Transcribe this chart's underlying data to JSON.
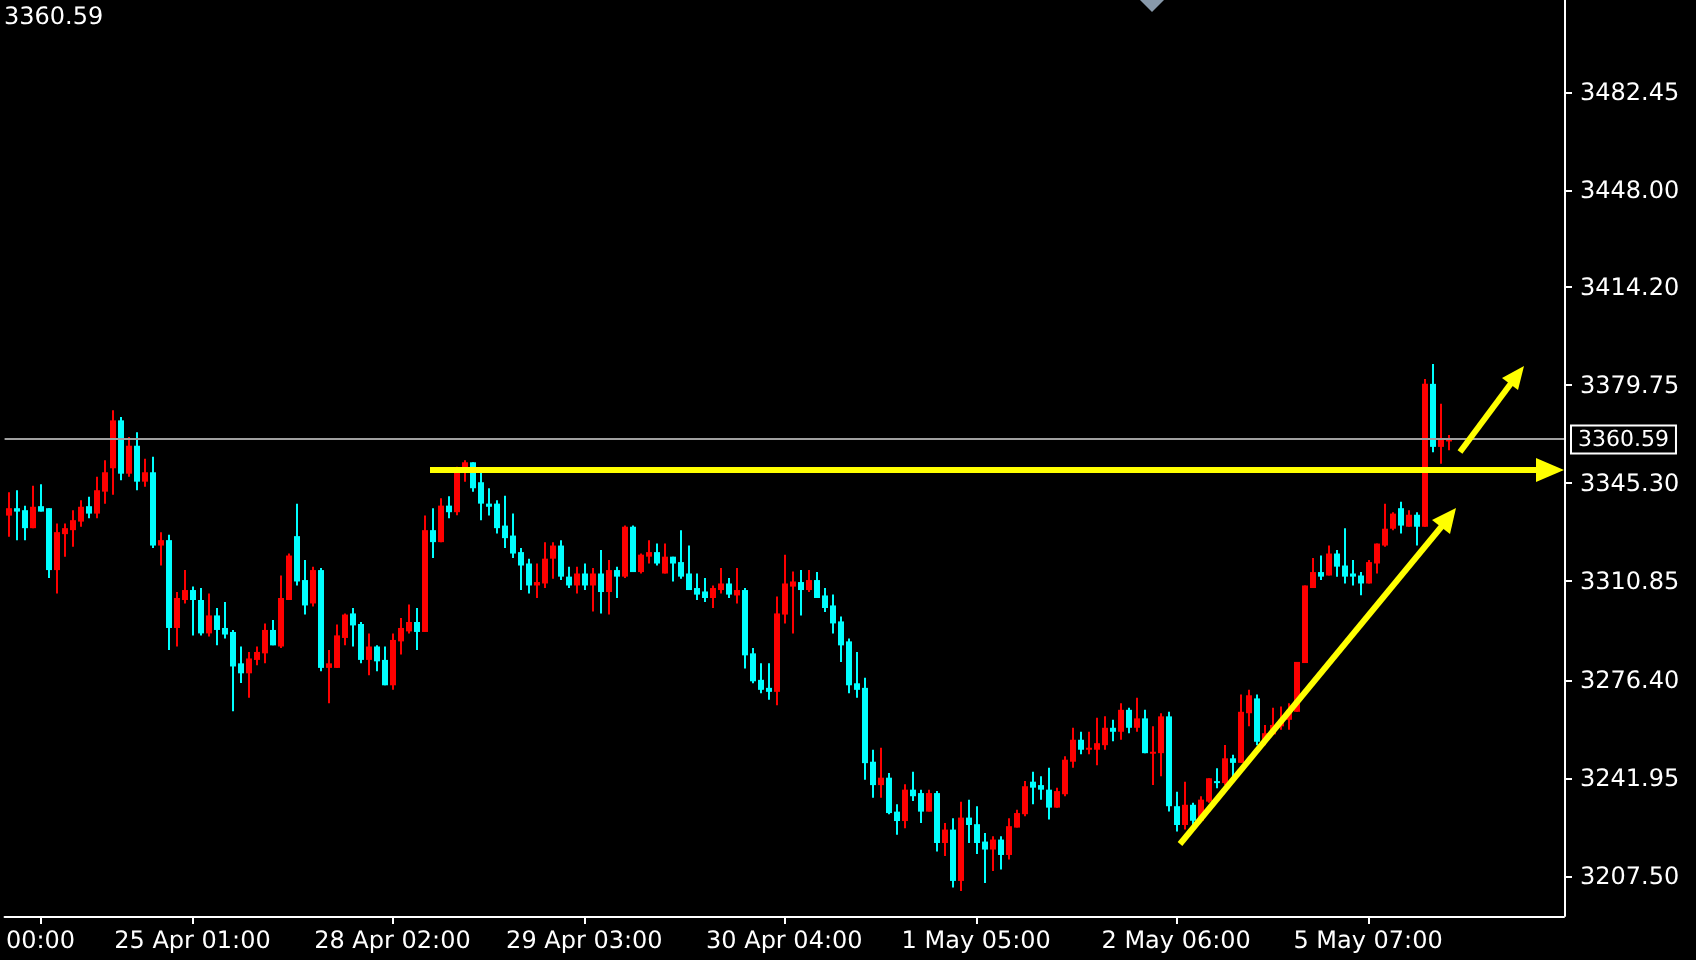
{
  "chart_data": {
    "type": "candlestick",
    "annotations": [
      "3360.59"
    ],
    "categories": [
      null,
      null,
      null,
      null,
      "00:00",
      null,
      null,
      null,
      null,
      null,
      null,
      null,
      null,
      null,
      null,
      null,
      null,
      null,
      null,
      null,
      null,
      null,
      null,
      "25 Apr 01:00",
      null,
      null,
      null,
      null,
      null,
      null,
      null,
      null,
      null,
      null,
      null,
      null,
      null,
      null,
      null,
      null,
      null,
      null,
      null,
      null,
      null,
      null,
      null,
      null,
      "28 Apr 02:00",
      null,
      null,
      null,
      null,
      null,
      null,
      null,
      null,
      null,
      null,
      null,
      null,
      null,
      null,
      null,
      null,
      null,
      null,
      null,
      null,
      null,
      null,
      null,
      "29 Apr 03:00",
      null,
      null,
      null,
      null,
      null,
      null,
      null,
      null,
      null,
      null,
      null,
      null,
      null,
      null,
      null,
      null,
      null,
      null,
      null,
      null,
      null,
      null,
      null,
      null,
      "30 Apr 04:00",
      null,
      null,
      null,
      null,
      null,
      null,
      null,
      null,
      null,
      null,
      null,
      null,
      null,
      null,
      null,
      null,
      null,
      null,
      null,
      null,
      null,
      null,
      null,
      "1 May 05:00",
      null,
      null,
      null,
      null,
      null,
      null,
      null,
      null,
      null,
      null,
      null,
      null,
      null,
      null,
      null,
      null,
      null,
      null,
      null,
      null,
      null,
      null,
      null,
      null,
      "2 May 06:00",
      null,
      null,
      null,
      null,
      null,
      null,
      null,
      null,
      null,
      null,
      null,
      null,
      null,
      null,
      null,
      null,
      null,
      null,
      null,
      null,
      null,
      null,
      null,
      "5 May 07:00",
      null,
      null,
      null,
      null,
      null,
      null,
      null,
      null,
      null,
      null,
      null,
      null,
      null,
      null,
      null,
      null,
      null,
      null,
      null,
      null,
      null,
      null,
      null,
      null
    ],
    "ohlc": [
      [
        3333.9,
        3342.1,
        3326.5,
        3336.5
      ],
      [
        3336.5,
        3342.8,
        3325.3,
        3335.3
      ],
      [
        3335.8,
        3337.4,
        3325.3,
        3329.5
      ],
      [
        3329.5,
        3344.4,
        3329.5,
        3337
      ],
      [
        3337.2,
        3344.9,
        3335.3,
        3335.3
      ],
      [
        3336.5,
        3336.5,
        3312,
        3314.8
      ],
      [
        3314.8,
        3331.1,
        3306.6,
        3328.1
      ],
      [
        3327.4,
        3331.1,
        3319.5,
        3329.5
      ],
      [
        3328.8,
        3335.8,
        3323,
        3332.3
      ],
      [
        3331.8,
        3339.3,
        3330,
        3337
      ],
      [
        3337.2,
        3340.5,
        3333,
        3334.6
      ],
      [
        3334.6,
        3347.5,
        3333,
        3342.8
      ],
      [
        3342.3,
        3353.3,
        3338.1,
        3349.1
      ],
      [
        3350.5,
        3370.8,
        3341.2,
        3367.3
      ],
      [
        3367.3,
        3368.5,
        3346.3,
        3348.6
      ],
      [
        3348.6,
        3361.5,
        3347.5,
        3358.4
      ],
      [
        3358.4,
        3363.1,
        3342.8,
        3345.8
      ],
      [
        3345.8,
        3353.8,
        3344,
        3349.1
      ],
      [
        3349.1,
        3354.5,
        3322.5,
        3323.4
      ],
      [
        3323.4,
        3328.1,
        3316.4,
        3325.3
      ],
      [
        3325.3,
        3327.2,
        3286.8,
        3294.5
      ],
      [
        3294.5,
        3307.1,
        3288,
        3305
      ],
      [
        3304.3,
        3314.8,
        3303.1,
        3307.8
      ],
      [
        3307.8,
        3309,
        3291.9,
        3304.3
      ],
      [
        3304.3,
        3308.5,
        3291.9,
        3292.6
      ],
      [
        3292.6,
        3306.6,
        3291.5,
        3298.9
      ],
      [
        3298.9,
        3301.5,
        3288.4,
        3293.8
      ],
      [
        3294.5,
        3303.6,
        3290.8,
        3292.2
      ],
      [
        3293.1,
        3293.8,
        3265.3,
        3281
      ],
      [
        3282.1,
        3288,
        3275.2,
        3278.6
      ],
      [
        3278.6,
        3286.1,
        3270,
        3283.8
      ],
      [
        3283.3,
        3288,
        3281.4,
        3286.1
      ],
      [
        3285.6,
        3296.1,
        3282.1,
        3293.8
      ],
      [
        3293.8,
        3297.3,
        3288.4,
        3288.4
      ],
      [
        3288,
        3312.9,
        3287.5,
        3305
      ],
      [
        3304.3,
        3320.6,
        3304.3,
        3319.9
      ],
      [
        3326.7,
        3338.1,
        3309.4,
        3310.8
      ],
      [
        3311.3,
        3318.3,
        3299.2,
        3302.4
      ],
      [
        3303.1,
        3316,
        3302,
        3314.8
      ],
      [
        3314.8,
        3315.5,
        3279.3,
        3280.5
      ],
      [
        3280.5,
        3286.8,
        3268.1,
        3282.1
      ],
      [
        3280.5,
        3295.7,
        3280.5,
        3291.9
      ],
      [
        3291,
        3299.6,
        3288.4,
        3299.2
      ],
      [
        3299.6,
        3301.5,
        3288,
        3295.4
      ],
      [
        3295.9,
        3296.6,
        3282.1,
        3283.3
      ],
      [
        3283.3,
        3292.6,
        3277.9,
        3288
      ],
      [
        3288,
        3288.4,
        3279.3,
        3282.8
      ],
      [
        3283.3,
        3288,
        3274.4,
        3274.4
      ],
      [
        3274.4,
        3292.6,
        3272.8,
        3290.3
      ],
      [
        3289.8,
        3298,
        3285.2,
        3294.5
      ],
      [
        3293.3,
        3302.7,
        3292.6,
        3296.6
      ],
      [
        3296.6,
        3301.5,
        3286.8,
        3293.1
      ],
      [
        3293.1,
        3333.9,
        3293.1,
        3328.8
      ],
      [
        3328.8,
        3336.5,
        3319,
        3324.6
      ],
      [
        3324.6,
        3340,
        3324.6,
        3337.4
      ],
      [
        3337.4,
        3340.7,
        3333,
        3335.1
      ],
      [
        3335.1,
        3351,
        3334,
        3349.8
      ],
      [
        3349.8,
        3353.3,
        3345.8,
        3352.6
      ],
      [
        3352.6,
        3352.6,
        3342.3,
        3343.5
      ],
      [
        3345.6,
        3349.1,
        3332.3,
        3338.1
      ],
      [
        3338.1,
        3343.5,
        3333.9,
        3337
      ],
      [
        3338.1,
        3339.3,
        3327.6,
        3329.5
      ],
      [
        3330.4,
        3340.9,
        3322.5,
        3326
      ],
      [
        3326.9,
        3334.6,
        3319,
        3320.6
      ],
      [
        3321.1,
        3322.5,
        3307.8,
        3316.4
      ],
      [
        3317.1,
        3318.8,
        3306.6,
        3309.4
      ],
      [
        3309.4,
        3317.1,
        3305,
        3310.6
      ],
      [
        3310.1,
        3324.6,
        3308.5,
        3318.8
      ],
      [
        3318.8,
        3324.6,
        3311.8,
        3323.4
      ],
      [
        3323.4,
        3325.3,
        3311.3,
        3312.5
      ],
      [
        3312.5,
        3316,
        3308.5,
        3309.4
      ],
      [
        3309.4,
        3316,
        3306.6,
        3313.6
      ],
      [
        3313.6,
        3317.1,
        3307.8,
        3309.4
      ],
      [
        3309.4,
        3315.5,
        3300.3,
        3313.6
      ],
      [
        3313.6,
        3321.8,
        3299.6,
        3307.1
      ],
      [
        3307.1,
        3318.3,
        3299.2,
        3314.8
      ],
      [
        3314.8,
        3316,
        3305,
        3312.5
      ],
      [
        3312.5,
        3330.4,
        3312,
        3330
      ],
      [
        3330,
        3330.4,
        3314.1,
        3314.1
      ],
      [
        3314.1,
        3320.6,
        3313.6,
        3320.2
      ],
      [
        3319.5,
        3325.3,
        3317.1,
        3321.1
      ],
      [
        3321.1,
        3324.1,
        3316.4,
        3317.1
      ],
      [
        3313.6,
        3324.1,
        3313.6,
        3319.5
      ],
      [
        3319.5,
        3319.5,
        3310.8,
        3317.1
      ],
      [
        3317.6,
        3328.8,
        3311.8,
        3312.5
      ],
      [
        3313.6,
        3323.4,
        3307.8,
        3307.8
      ],
      [
        3308.5,
        3313.6,
        3304.3,
        3306.2
      ],
      [
        3307.3,
        3312,
        3303.6,
        3305
      ],
      [
        3305,
        3309.4,
        3301.5,
        3308.5
      ],
      [
        3307.8,
        3315.5,
        3306.6,
        3310.1
      ],
      [
        3310.1,
        3312,
        3305,
        3306.2
      ],
      [
        3305.9,
        3315.5,
        3303.1,
        3307.8
      ],
      [
        3307.8,
        3308.5,
        3280.3,
        3284.9
      ],
      [
        3285.6,
        3287.5,
        3275.1,
        3275.8
      ],
      [
        3276.3,
        3282.1,
        3271.6,
        3272.8
      ],
      [
        3273.5,
        3282.1,
        3269.3,
        3272.1
      ],
      [
        3272.1,
        3305.5,
        3267.4,
        3299.6
      ],
      [
        3299.2,
        3320.2,
        3296.1,
        3310.1
      ],
      [
        3309,
        3314.3,
        3292.6,
        3310.8
      ],
      [
        3310.6,
        3314.8,
        3298.9,
        3307.8
      ],
      [
        3307.8,
        3314.8,
        3307.1,
        3311.3
      ],
      [
        3311.3,
        3314.1,
        3305,
        3305
      ],
      [
        3305.9,
        3308.5,
        3300.1,
        3301.5
      ],
      [
        3302.4,
        3306.2,
        3292.6,
        3296.1
      ],
      [
        3296.8,
        3298.5,
        3282.6,
        3288.4
      ],
      [
        3289.8,
        3290.8,
        3271.6,
        3274.4
      ],
      [
        3275.1,
        3286.1,
        3270,
        3272.8
      ],
      [
        3273.5,
        3277,
        3241.3,
        3247.1
      ],
      [
        3247.6,
        3251.8,
        3235,
        3239.4
      ],
      [
        3239.4,
        3252.5,
        3235,
        3242
      ],
      [
        3242,
        3243.6,
        3229.2,
        3229.6
      ],
      [
        3230.1,
        3232.7,
        3222,
        3226.8
      ],
      [
        3226.8,
        3239.7,
        3224.3,
        3237.8
      ],
      [
        3237.8,
        3244.1,
        3233.8,
        3235.5
      ],
      [
        3236.6,
        3237.8,
        3226.1,
        3230.1
      ],
      [
        3230.1,
        3237.8,
        3230.1,
        3236.6
      ],
      [
        3236.6,
        3237.3,
        3216.1,
        3219.1
      ],
      [
        3219.1,
        3226.1,
        3214.5,
        3223.8
      ],
      [
        3223.8,
        3227.8,
        3203.5,
        3205.8
      ],
      [
        3205.8,
        3233.6,
        3202.3,
        3228
      ],
      [
        3228,
        3234.3,
        3219.1,
        3225.4
      ],
      [
        3225.7,
        3232,
        3215.2,
        3219.1
      ],
      [
        3219.6,
        3222.6,
        3205.1,
        3216.8
      ],
      [
        3216.8,
        3221.5,
        3209.3,
        3220.3
      ],
      [
        3220.3,
        3221.5,
        3209.8,
        3214.9
      ],
      [
        3214.9,
        3227.8,
        3213.3,
        3225
      ],
      [
        3224.5,
        3230.8,
        3224.5,
        3229.6
      ],
      [
        3229.2,
        3240.8,
        3228.5,
        3239
      ],
      [
        3240.6,
        3244.1,
        3232.7,
        3238.5
      ],
      [
        3239.4,
        3242.5,
        3234.3,
        3237.8
      ],
      [
        3237.8,
        3245.5,
        3227.3,
        3231.5
      ],
      [
        3231.5,
        3238.5,
        3231.5,
        3237.3
      ],
      [
        3236.2,
        3249.5,
        3235.5,
        3248.3
      ],
      [
        3247.6,
        3259.5,
        3245.5,
        3255.3
      ],
      [
        3255.3,
        3258.1,
        3250.2,
        3251.8
      ],
      [
        3251.8,
        3258.1,
        3250.2,
        3252.5
      ],
      [
        3251.8,
        3263,
        3246.4,
        3254.1
      ],
      [
        3253.4,
        3263.5,
        3251.8,
        3259.5
      ],
      [
        3259.5,
        3262.3,
        3254.8,
        3258.1
      ],
      [
        3258.1,
        3268.1,
        3255.3,
        3265.8
      ],
      [
        3265.8,
        3266.5,
        3257.6,
        3259.5
      ],
      [
        3259.5,
        3270,
        3258.1,
        3262.8
      ],
      [
        3262.8,
        3265.8,
        3250.6,
        3250.6
      ],
      [
        3250.6,
        3260,
        3239.4,
        3251.1
      ],
      [
        3250.6,
        3264.6,
        3242.5,
        3263.5
      ],
      [
        3263.5,
        3265.1,
        3230.1,
        3232
      ],
      [
        3232,
        3237.1,
        3223.1,
        3225.4
      ],
      [
        3225.4,
        3240.6,
        3223.8,
        3232.5
      ],
      [
        3232.5,
        3233.2,
        3225,
        3226.9
      ],
      [
        3226.9,
        3235.5,
        3226.9,
        3234.3
      ],
      [
        3233.6,
        3241.8,
        3233.2,
        3241.8
      ],
      [
        3240.8,
        3245.3,
        3238.3,
        3240.1
      ],
      [
        3240.1,
        3253.5,
        3239.4,
        3248.8
      ],
      [
        3248.8,
        3250,
        3241.3,
        3247.2
      ],
      [
        3247.2,
        3271.2,
        3247.2,
        3265.1
      ],
      [
        3264.6,
        3272.8,
        3260,
        3270.9
      ],
      [
        3269.8,
        3271.2,
        3253.4,
        3254.6
      ],
      [
        3254.6,
        3260.5,
        3253.4,
        3257.6
      ],
      [
        3257.2,
        3266.5,
        3257.2,
        3260.5
      ],
      [
        3260,
        3267,
        3258.8,
        3262.3
      ],
      [
        3262.3,
        3268.1,
        3258.8,
        3265.8
      ],
      [
        3265.1,
        3282.6,
        3265.1,
        3282.6
      ],
      [
        3282.2,
        3309.4,
        3282.2,
        3309.4
      ],
      [
        3308.5,
        3319,
        3308.5,
        3314.1
      ],
      [
        3314.1,
        3319.9,
        3311.3,
        3312.5
      ],
      [
        3312.9,
        3323.4,
        3312.9,
        3320.6
      ],
      [
        3320.6,
        3321.8,
        3312.5,
        3316
      ],
      [
        3316.4,
        3329.5,
        3310.1,
        3312.5
      ],
      [
        3313.6,
        3318.3,
        3309.4,
        3312.5
      ],
      [
        3312.9,
        3314.1,
        3306,
        3310.1
      ],
      [
        3310.1,
        3318.3,
        3310.1,
        3317.6
      ],
      [
        3317.1,
        3324.1,
        3313.6,
        3324.1
      ],
      [
        3323.4,
        3338.1,
        3323,
        3329.3
      ],
      [
        3329.3,
        3335.1,
        3328.8,
        3334.6
      ],
      [
        3336.5,
        3338.8,
        3327.6,
        3330.4
      ],
      [
        3330,
        3335.8,
        3330,
        3334.2
      ],
      [
        3334.2,
        3335.1,
        3323.4,
        3330
      ],
      [
        3330,
        3381.8,
        3330,
        3380.1
      ],
      [
        3380.1,
        3387.1,
        3356.1,
        3358
      ],
      [
        3358,
        3373.1,
        3352.1,
        3360.8
      ],
      [
        3360.3,
        3362.2,
        3356.8,
        3360.6
      ],
      null,
      null,
      null,
      null,
      null,
      null,
      null,
      null,
      null,
      null,
      null,
      null,
      null,
      null
    ],
    "ylim": [
      3193.5,
      3514.7
    ],
    "yticks": [
      {
        "value": 3207.5,
        "label": "3207.50"
      },
      {
        "value": 3241.95,
        "label": "3241.95"
      },
      {
        "value": 3276.4,
        "label": "3276.40"
      },
      {
        "value": 3310.85,
        "label": "3310.85"
      },
      {
        "value": 3345.3,
        "label": "3345.30"
      },
      {
        "value": 3379.75,
        "label": "3379.75"
      },
      {
        "value": 3414.2,
        "label": "3414.20"
      },
      {
        "value": 3448,
        "label": "3448.00"
      },
      {
        "value": 3482.45,
        "label": "3482.45"
      }
    ],
    "ref_lines": [
      {
        "axis": "y",
        "value": 3360.59,
        "label": "3360.59",
        "color": "#a0a0a0"
      }
    ]
  }
}
